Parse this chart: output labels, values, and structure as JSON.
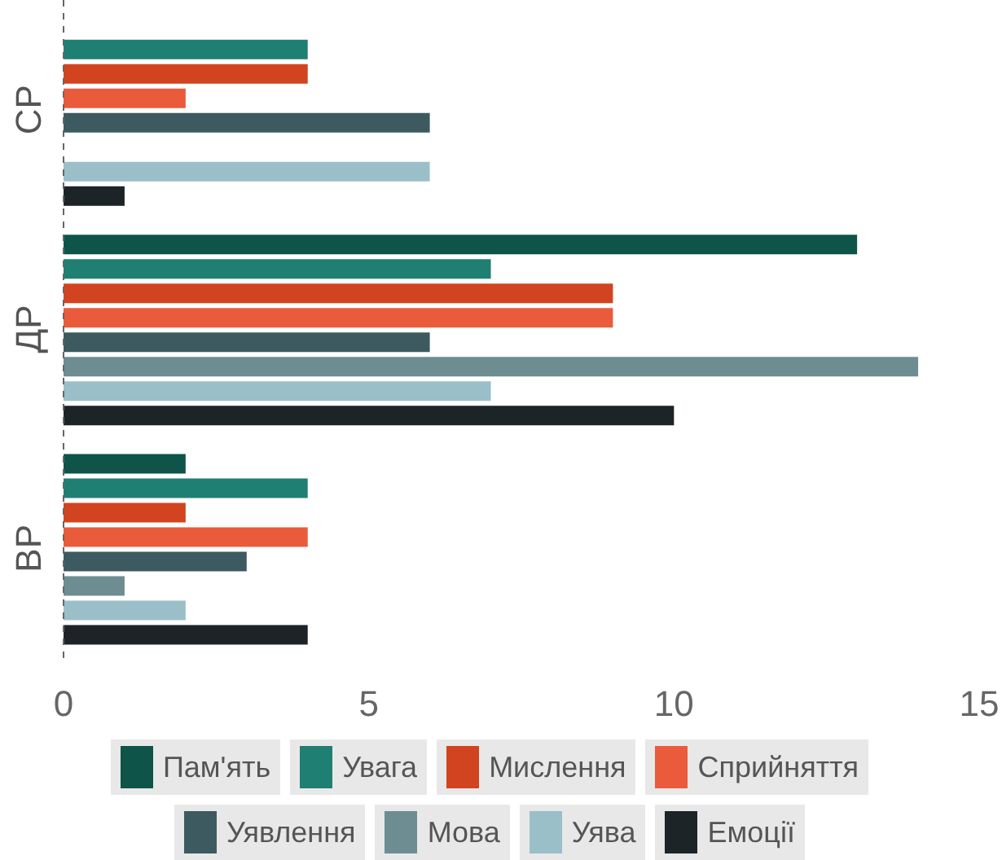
{
  "chart_data": {
    "type": "bar",
    "orientation": "horizontal",
    "categories": [
      "СР",
      "ДР",
      "ВР"
    ],
    "series": [
      {
        "name": "Пам'ять",
        "color": "#0e5448",
        "values": [
          0,
          13,
          2
        ]
      },
      {
        "name": "Увага",
        "color": "#1f7f72",
        "values": [
          4,
          7,
          4
        ]
      },
      {
        "name": "Мислення",
        "color": "#d2441f",
        "values": [
          4,
          9,
          2
        ]
      },
      {
        "name": "Сприйняття",
        "color": "#ea5b3c",
        "values": [
          2,
          9,
          4
        ]
      },
      {
        "name": "Уявлення",
        "color": "#3c5a60",
        "values": [
          6,
          6,
          3
        ]
      },
      {
        "name": "Мова",
        "color": "#6e8d92",
        "values": [
          0,
          14,
          1
        ]
      },
      {
        "name": "Уява",
        "color": "#9bbfc8",
        "values": [
          6,
          7,
          2
        ]
      },
      {
        "name": "Емоції",
        "color": "#1c2427",
        "values": [
          1,
          10,
          4
        ]
      }
    ],
    "xlim": [
      0,
      15
    ],
    "xticks": [
      0,
      5,
      10,
      15
    ],
    "grid": false,
    "legend": "bottom"
  }
}
